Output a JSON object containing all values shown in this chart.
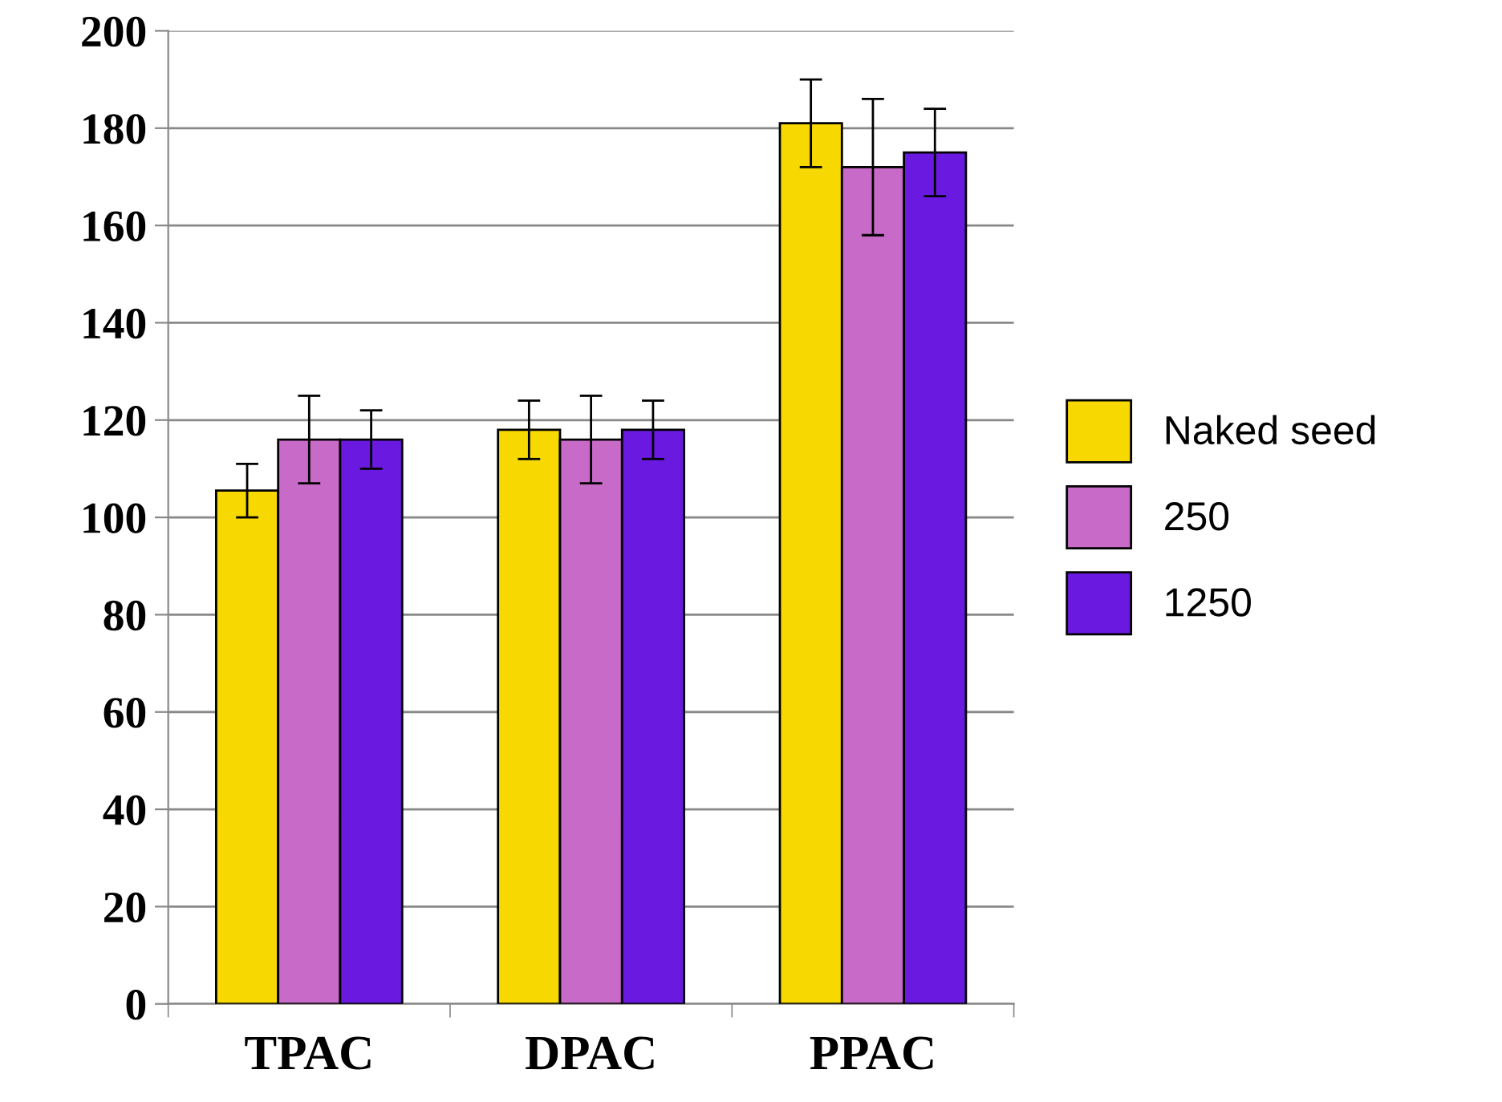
{
  "chart_data": {
    "type": "bar",
    "categories": [
      "TPAC",
      "DPAC",
      "PPAC"
    ],
    "series": [
      {
        "name": "Naked seed",
        "color": "#f7d800",
        "values": [
          105.5,
          118,
          181
        ],
        "errors": [
          [
            100,
            111
          ],
          [
            112,
            124
          ],
          [
            172,
            190
          ]
        ]
      },
      {
        "name": "250",
        "color": "#c86ac8",
        "values": [
          116,
          116,
          172
        ],
        "errors": [
          [
            107,
            125
          ],
          [
            107,
            125
          ],
          [
            158,
            186
          ]
        ]
      },
      {
        "name": "1250",
        "color": "#6a1ae0",
        "values": [
          116,
          118,
          175
        ],
        "errors": [
          [
            110,
            122
          ],
          [
            112,
            124
          ],
          [
            166,
            184
          ]
        ]
      }
    ],
    "ylim": [
      0,
      200
    ],
    "yticks": [
      0,
      20,
      40,
      60,
      80,
      100,
      120,
      140,
      160,
      180,
      200
    ],
    "grid": "y",
    "legend": "right"
  }
}
